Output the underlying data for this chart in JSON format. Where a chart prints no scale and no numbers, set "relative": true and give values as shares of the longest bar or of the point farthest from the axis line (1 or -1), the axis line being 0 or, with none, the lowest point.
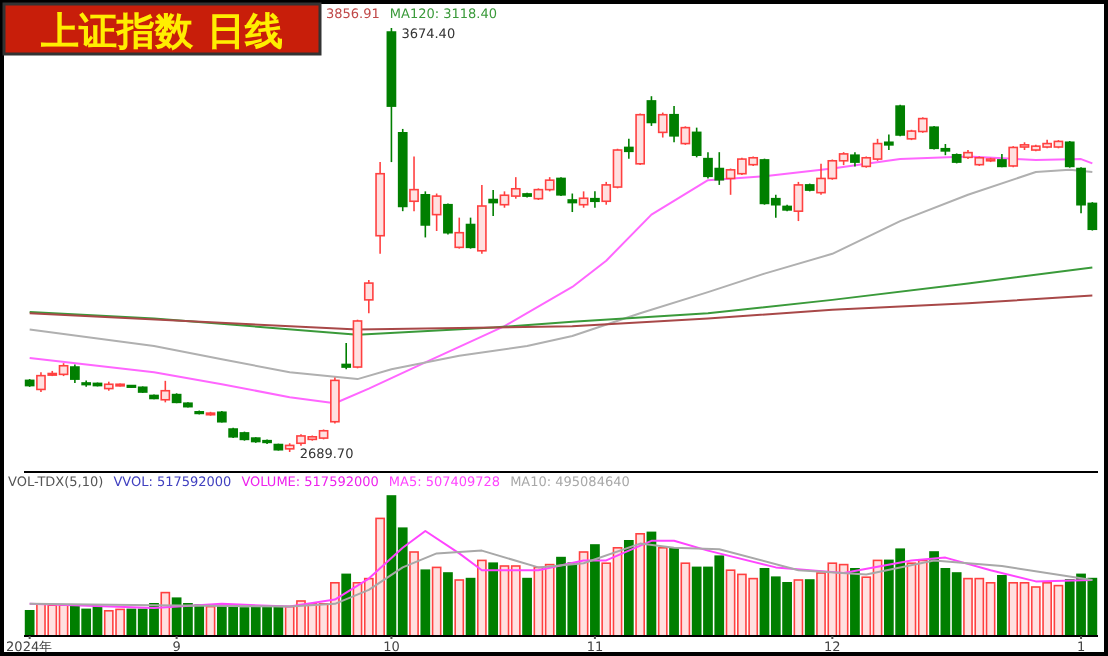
{
  "chart_data": [
    {
      "type": "candlestick",
      "title": "上证指数 日线",
      "tick_labels": false,
      "annotations": [
        "3856.91",
        "3674.40",
        "2689.70"
      ],
      "categories": [
        null,
        null,
        null,
        null,
        null,
        null,
        null,
        null,
        null,
        null,
        null,
        null,
        null,
        null,
        null,
        null,
        null,
        null,
        null,
        null,
        null,
        null,
        null,
        null,
        null,
        null,
        null,
        null,
        null,
        null,
        null,
        null,
        null,
        null,
        null,
        null,
        null,
        null,
        null,
        null,
        null,
        null,
        null,
        null,
        null,
        null,
        null,
        null,
        null,
        null,
        null,
        null,
        null,
        null,
        null,
        null,
        null,
        null,
        null,
        null,
        null,
        null,
        null,
        null,
        null,
        null,
        null,
        null,
        null,
        null,
        null,
        null,
        null,
        null,
        null,
        null,
        null,
        null,
        null,
        null,
        null,
        null,
        null,
        null,
        null,
        null,
        null,
        null,
        null,
        null,
        null,
        null,
        null,
        null,
        null
      ],
      "ohlc": [
        [
          2856,
          2859,
          2841,
          2844
        ],
        [
          2835,
          2875,
          2829,
          2867
        ],
        [
          2869,
          2878,
          2866,
          2872
        ],
        [
          2870,
          2896,
          2866,
          2890
        ],
        [
          2887,
          2893,
          2850,
          2859
        ],
        [
          2850,
          2856,
          2841,
          2847
        ],
        [
          2849,
          2851,
          2842,
          2844
        ],
        [
          2837,
          2853,
          2832,
          2847
        ],
        [
          2844,
          2849,
          2842,
          2847
        ],
        [
          2844,
          2845,
          2839,
          2841
        ],
        [
          2840,
          2842,
          2827,
          2829
        ],
        [
          2821,
          2823,
          2812,
          2814
        ],
        [
          2811,
          2855,
          2805,
          2832
        ],
        [
          2823,
          2826,
          2803,
          2805
        ],
        [
          2803,
          2805,
          2793,
          2795
        ],
        [
          2783,
          2786,
          2777,
          2780
        ],
        [
          2777,
          2783,
          2774,
          2780
        ],
        [
          2782,
          2785,
          2758,
          2760
        ],
        [
          2743,
          2746,
          2722,
          2725
        ],
        [
          2734,
          2737,
          2716,
          2719
        ],
        [
          2722,
          2724,
          2711,
          2714
        ],
        [
          2716,
          2719,
          2708,
          2712
        ],
        [
          2707,
          2709,
          2693,
          2695
        ],
        [
          2697,
          2710,
          2689.7,
          2705
        ],
        [
          2710,
          2731,
          2704,
          2727
        ],
        [
          2719,
          2728,
          2716,
          2725
        ],
        [
          2722,
          2742,
          2719,
          2739
        ],
        [
          2760,
          2863,
          2756,
          2856
        ],
        [
          2893,
          2943,
          2882,
          2887
        ],
        [
          2887,
          2997,
          2884,
          2994
        ],
        [
          3043,
          3089,
          3012,
          3082
        ],
        [
          3192,
          3363,
          3150,
          3336
        ],
        [
          3665,
          3674.4,
          3363,
          3493
        ],
        [
          3431,
          3440,
          3249,
          3260
        ],
        [
          3272,
          3376,
          3249,
          3299
        ],
        [
          3287,
          3295,
          3188,
          3217
        ],
        [
          3241,
          3290,
          3203,
          3284
        ],
        [
          3264,
          3267,
          3195,
          3199
        ],
        [
          3165,
          3234,
          3162,
          3199
        ],
        [
          3218,
          3234,
          3162,
          3165
        ],
        [
          3157,
          3310,
          3150,
          3261
        ],
        [
          3276,
          3298,
          3238,
          3269
        ],
        [
          3264,
          3295,
          3257,
          3286
        ],
        [
          3284,
          3328,
          3278,
          3301
        ],
        [
          3289,
          3292,
          3281,
          3284
        ],
        [
          3278,
          3302,
          3275,
          3299
        ],
        [
          3299,
          3328,
          3295,
          3321
        ],
        [
          3325,
          3328,
          3284,
          3287
        ],
        [
          3275,
          3290,
          3247,
          3269
        ],
        [
          3264,
          3295,
          3257,
          3279
        ],
        [
          3278,
          3295,
          3257,
          3272
        ],
        [
          3272,
          3317,
          3264,
          3310
        ],
        [
          3305,
          3394,
          3302,
          3391
        ],
        [
          3397,
          3417,
          3371,
          3388
        ],
        [
          3359,
          3476,
          3356,
          3473
        ],
        [
          3505,
          3516,
          3447,
          3455
        ],
        [
          3432,
          3478,
          3420,
          3473
        ],
        [
          3473,
          3493,
          3409,
          3424
        ],
        [
          3406,
          3446,
          3403,
          3443
        ],
        [
          3432,
          3443,
          3374,
          3379
        ],
        [
          3371,
          3386,
          3325,
          3330
        ],
        [
          3348,
          3386,
          3310,
          3322
        ],
        [
          3325,
          3348,
          3287,
          3345
        ],
        [
          3336,
          3373,
          3333,
          3370
        ],
        [
          3357,
          3376,
          3354,
          3373
        ],
        [
          3368,
          3371,
          3264,
          3267
        ],
        [
          3278,
          3287,
          3234,
          3264
        ],
        [
          3260,
          3264,
          3249,
          3252
        ],
        [
          3249,
          3317,
          3226,
          3310
        ],
        [
          3310,
          3313,
          3295,
          3298
        ],
        [
          3292,
          3359,
          3287,
          3325
        ],
        [
          3325,
          3369,
          3322,
          3366
        ],
        [
          3366,
          3386,
          3356,
          3382
        ],
        [
          3379,
          3386,
          3353,
          3363
        ],
        [
          3353,
          3376,
          3350,
          3373
        ],
        [
          3370,
          3417,
          3366,
          3406
        ],
        [
          3409,
          3427,
          3391,
          3403
        ],
        [
          3493,
          3496,
          3423,
          3426
        ],
        [
          3417,
          3438,
          3414,
          3435
        ],
        [
          3434,
          3467,
          3431,
          3464
        ],
        [
          3444,
          3447,
          3392,
          3395
        ],
        [
          3394,
          3405,
          3379,
          3389
        ],
        [
          3380,
          3383,
          3360,
          3363
        ],
        [
          3374,
          3391,
          3370,
          3385
        ],
        [
          3357,
          3376,
          3354,
          3373
        ],
        [
          3366,
          3373,
          3363,
          3370
        ],
        [
          3368,
          3382,
          3351,
          3353
        ],
        [
          3354,
          3400,
          3351,
          3397
        ],
        [
          3398,
          3409,
          3391,
          3403
        ],
        [
          3391,
          3403,
          3388,
          3400
        ],
        [
          3398,
          3415,
          3395,
          3406
        ],
        [
          3398,
          3414,
          3395,
          3411
        ],
        [
          3409,
          3412,
          3350,
          3353
        ],
        [
          3348,
          3351,
          3244,
          3264
        ],
        [
          3267,
          3270,
          3204,
          3207
        ]
      ],
      "colors": [
        "#007f00",
        "#ff4040",
        "#ff4040",
        "#ff4040",
        "#007f00",
        "#007f00",
        "#007f00",
        "#ff4040",
        "#ff4040",
        "#007f00",
        "#007f00",
        "#007f00",
        "#ff4040",
        "#007f00",
        "#007f00",
        "#007f00",
        "#ff4040",
        "#007f00",
        "#007f00",
        "#007f00",
        "#007f00",
        "#007f00",
        "#007f00",
        "#ff4040",
        "#ff4040",
        "#ff4040",
        "#ff4040",
        "#ff4040",
        "#007f00",
        "#ff4040",
        "#ff4040",
        "#ff4040",
        "#007f00",
        "#007f00",
        "#ff4040",
        "#007f00",
        "#ff4040",
        "#007f00",
        "#ff4040",
        "#007f00",
        "#ff4040",
        "#007f00",
        "#ff4040",
        "#ff4040",
        "#007f00",
        "#ff4040",
        "#ff4040",
        "#007f00",
        "#007f00",
        "#ff4040",
        "#007f00",
        "#ff4040",
        "#ff4040",
        "#007f00",
        "#ff4040",
        "#007f00",
        "#ff4040",
        "#007f00",
        "#ff4040",
        "#007f00",
        "#007f00",
        "#007f00",
        "#ff4040",
        "#ff4040",
        "#ff4040",
        "#007f00",
        "#007f00",
        "#007f00",
        "#ff4040",
        "#007f00",
        "#ff4040",
        "#ff4040",
        "#ff4040",
        "#007f00",
        "#ff4040",
        "#ff4040",
        "#007f00",
        "#007f00",
        "#ff4040",
        "#ff4040",
        "#007f00",
        "#007f00",
        "#007f00",
        "#ff4040",
        "#ff4040",
        "#ff4040",
        "#007f00",
        "#ff4040",
        "#ff4040",
        "#ff4040",
        "#ff4040",
        "#ff4040",
        "#007f00",
        "#007f00",
        "#007f00"
      ],
      "series": [
        {
          "type": "line",
          "color": "#ff66ff",
          "values": [
            2908,
            null,
            null,
            null,
            null,
            null,
            null,
            null,
            null,
            null,
            null,
            2875,
            null,
            null,
            null,
            null,
            null,
            2847,
            null,
            null,
            null,
            null,
            null,
            2817,
            null,
            null,
            null,
            2803,
            null,
            null,
            2837,
            null,
            null,
            null,
            null,
            2898,
            null,
            null,
            null,
            null,
            null,
            null,
            2982,
            null,
            null,
            null,
            null,
            null,
            3073,
            null,
            null,
            3134,
            null,
            null,
            null,
            3241,
            null,
            null,
            null,
            null,
            3321,
            null,
            null,
            null,
            null,
            3330,
            null,
            null,
            null,
            null,
            null,
            3348,
            null,
            null,
            null,
            null,
            null,
            3370,
            null,
            null,
            null,
            null,
            null,
            3376,
            null,
            null,
            null,
            null,
            null,
            3368,
            null,
            null,
            null,
            3370,
            3360
          ]
        },
        {
          "type": "line",
          "color": "#b0b0b0",
          "values": [
            2974,
            null,
            null,
            null,
            null,
            null,
            null,
            null,
            null,
            null,
            null,
            2936,
            null,
            null,
            null,
            null,
            null,
            2905,
            null,
            null,
            null,
            null,
            null,
            2875,
            null,
            null,
            null,
            null,
            null,
            2859,
            null,
            null,
            2882,
            null,
            null,
            null,
            null,
            null,
            2913,
            null,
            null,
            null,
            null,
            null,
            2936,
            null,
            null,
            null,
            2959,
            null,
            null,
            null,
            null,
            null,
            3012,
            null,
            null,
            null,
            null,
            null,
            3061,
            null,
            null,
            null,
            null,
            3104,
            null,
            null,
            null,
            null,
            null,
            3150,
            null,
            null,
            null,
            null,
            null,
            3226,
            null,
            null,
            null,
            null,
            null,
            3287,
            null,
            null,
            null,
            null,
            null,
            3340,
            null,
            null,
            3345,
            null,
            3340
          ]
        },
        {
          "type": "line",
          "name": "MA120: 3118.40",
          "color": "#3a9a3a",
          "values": [
            3015,
            null,
            null,
            null,
            null,
            null,
            null,
            null,
            null,
            null,
            null,
            3000,
            null,
            null,
            null,
            null,
            null,
            null,
            null,
            null,
            null,
            null,
            null,
            null,
            null,
            null,
            null,
            null,
            null,
            2962,
            null,
            null,
            null,
            null,
            null,
            null,
            null,
            null,
            null,
            null,
            null,
            2979,
            null,
            null,
            null,
            null,
            null,
            null,
            2992,
            null,
            null,
            null,
            null,
            null,
            null,
            null,
            null,
            null,
            null,
            null,
            3012,
            null,
            null,
            null,
            null,
            null,
            null,
            null,
            null,
            null,
            null,
            3043,
            null,
            null,
            null,
            null,
            null,
            null,
            null,
            null,
            null,
            null,
            null,
            3081,
            null,
            null,
            null,
            null,
            null,
            null,
            null,
            null,
            null,
            null,
            3118.4
          ]
        },
        {
          "type": "line",
          "color": "#a84848",
          "values": [
            3012,
            null,
            null,
            null,
            null,
            null,
            null,
            null,
            null,
            null,
            null,
            null,
            null,
            null,
            null,
            null,
            null,
            null,
            null,
            null,
            null,
            null,
            null,
            null,
            null,
            null,
            null,
            null,
            null,
            2974,
            null,
            null,
            null,
            null,
            null,
            null,
            null,
            null,
            null,
            null,
            null,
            null,
            null,
            null,
            null,
            null,
            null,
            null,
            2982,
            null,
            null,
            null,
            null,
            null,
            null,
            null,
            null,
            null,
            null,
            null,
            3000,
            null,
            null,
            null,
            null,
            null,
            null,
            null,
            null,
            null,
            null,
            3020,
            null,
            null,
            null,
            null,
            null,
            null,
            null,
            null,
            null,
            null,
            null,
            3035,
            null,
            null,
            null,
            null,
            null,
            null,
            null,
            null,
            null,
            null,
            3053
          ]
        }
      ]
    },
    {
      "type": "bar",
      "title": "VOL-TDX(5,10)",
      "relative": true,
      "tick_labels": "x",
      "annotations": [
        "VVOL: 517592000",
        "VOLUME: 517592000"
      ],
      "categories": [
        "2024年",
        null,
        null,
        null,
        null,
        null,
        null,
        null,
        null,
        null,
        null,
        null,
        null,
        "9",
        null,
        null,
        null,
        null,
        null,
        null,
        null,
        null,
        null,
        null,
        null,
        null,
        null,
        null,
        null,
        null,
        null,
        null,
        "10",
        null,
        null,
        null,
        null,
        null,
        null,
        null,
        null,
        null,
        null,
        null,
        null,
        null,
        null,
        null,
        null,
        null,
        "11",
        null,
        null,
        null,
        null,
        null,
        null,
        null,
        null,
        null,
        null,
        null,
        null,
        null,
        null,
        null,
        null,
        null,
        null,
        null,
        null,
        "12",
        null,
        null,
        null,
        null,
        null,
        null,
        null,
        null,
        null,
        null,
        null,
        null,
        null,
        null,
        null,
        null,
        null,
        null,
        null,
        null,
        null,
        "1",
        null
      ],
      "series": [
        {
          "type": "bar",
          "colors": [
            "#007f00",
            "#ff4040",
            "#ff4040",
            "#ff4040",
            "#007f00",
            "#007f00",
            "#007f00",
            "#ff4040",
            "#ff4040",
            "#007f00",
            "#007f00",
            "#007f00",
            "#ff4040",
            "#007f00",
            "#007f00",
            "#007f00",
            "#ff4040",
            "#007f00",
            "#007f00",
            "#007f00",
            "#007f00",
            "#007f00",
            "#007f00",
            "#ff4040",
            "#ff4040",
            "#ff4040",
            "#ff4040",
            "#ff4040",
            "#007f00",
            "#ff4040",
            "#ff4040",
            "#ff4040",
            "#007f00",
            "#007f00",
            "#ff4040",
            "#007f00",
            "#ff4040",
            "#007f00",
            "#ff4040",
            "#007f00",
            "#ff4040",
            "#007f00",
            "#ff4040",
            "#ff4040",
            "#007f00",
            "#ff4040",
            "#ff4040",
            "#007f00",
            "#007f00",
            "#ff4040",
            "#007f00",
            "#ff4040",
            "#ff4040",
            "#007f00",
            "#ff4040",
            "#007f00",
            "#ff4040",
            "#007f00",
            "#ff4040",
            "#007f00",
            "#007f00",
            "#007f00",
            "#ff4040",
            "#ff4040",
            "#ff4040",
            "#007f00",
            "#007f00",
            "#007f00",
            "#ff4040",
            "#007f00",
            "#ff4040",
            "#ff4040",
            "#ff4040",
            "#007f00",
            "#ff4040",
            "#ff4040",
            "#007f00",
            "#007f00",
            "#ff4040",
            "#ff4040",
            "#007f00",
            "#007f00",
            "#007f00",
            "#ff4040",
            "#ff4040",
            "#ff4040",
            "#007f00",
            "#ff4040",
            "#ff4040",
            "#ff4040",
            "#ff4040",
            "#ff4040",
            "#007f00",
            "#007f00",
            "#007f00"
          ],
          "values": [
            0.18,
            0.23,
            0.22,
            0.22,
            0.22,
            0.19,
            0.21,
            0.18,
            0.19,
            0.19,
            0.19,
            0.23,
            0.31,
            0.27,
            0.23,
            0.22,
            0.21,
            0.22,
            0.22,
            0.2,
            0.21,
            0.21,
            0.21,
            0.21,
            0.25,
            0.23,
            0.23,
            0.38,
            0.44,
            0.38,
            0.41,
            0.84,
            1,
            0.77,
            0.6,
            0.47,
            0.49,
            0.45,
            0.4,
            0.41,
            0.54,
            0.52,
            0.5,
            0.5,
            0.41,
            0.49,
            0.51,
            0.56,
            0.52,
            0.6,
            0.65,
            0.52,
            0.63,
            0.68,
            0.73,
            0.74,
            0.63,
            0.63,
            0.52,
            0.49,
            0.49,
            0.57,
            0.47,
            0.44,
            0.41,
            0.48,
            0.42,
            0.38,
            0.4,
            0.4,
            0.45,
            0.52,
            0.51,
            0.48,
            0.42,
            0.54,
            0.54,
            0.62,
            0.52,
            0.54,
            0.6,
            0.48,
            0.45,
            0.41,
            0.41,
            0.38,
            0.43,
            0.38,
            0.38,
            0.35,
            0.38,
            0.36,
            0.4,
            0.44,
            0.41
          ]
        },
        {
          "type": "line",
          "name": "MA5: 507409728",
          "color": "#ff44ff",
          "values": [
            0.23,
            null,
            null,
            null,
            null,
            null,
            null,
            null,
            null,
            null,
            null,
            0.2,
            null,
            null,
            null,
            null,
            null,
            0.23,
            null,
            null,
            null,
            null,
            null,
            0.21,
            null,
            null,
            null,
            0.26,
            null,
            null,
            0.41,
            null,
            null,
            0.63,
            null,
            0.75,
            null,
            null,
            0.59,
            null,
            0.47,
            null,
            null,
            null,
            null,
            0.47,
            null,
            null,
            null,
            0.54,
            null,
            0.54,
            null,
            null,
            null,
            0.68,
            null,
            0.68,
            null,
            null,
            0.61,
            null,
            null,
            null,
            null,
            null,
            0.49,
            null,
            null,
            null,
            null,
            null,
            0.45,
            null,
            null,
            null,
            null,
            null,
            0.54,
            null,
            null,
            0.56,
            null,
            null,
            null,
            0.47,
            null,
            null,
            null,
            0.39,
            null,
            null,
            null,
            null,
            0.4
          ]
        },
        {
          "type": "line",
          "name": "MA10: 495084640",
          "color": "#a8a8a8",
          "values": [
            0.23,
            null,
            null,
            null,
            null,
            null,
            null,
            null,
            null,
            null,
            null,
            0.22,
            null,
            null,
            null,
            null,
            null,
            null,
            null,
            null,
            null,
            null,
            null,
            0.21,
            null,
            null,
            null,
            0.23,
            null,
            null,
            0.33,
            null,
            null,
            0.49,
            null,
            null,
            0.59,
            null,
            null,
            null,
            0.61,
            null,
            null,
            null,
            null,
            0.49,
            null,
            null,
            null,
            0.52,
            null,
            null,
            null,
            null,
            0.66,
            null,
            null,
            0.63,
            null,
            null,
            null,
            0.62,
            null,
            null,
            null,
            null,
            null,
            null,
            0.47,
            null,
            null,
            null,
            null,
            null,
            0.44,
            null,
            null,
            null,
            null,
            null,
            0.54,
            null,
            null,
            null,
            null,
            null,
            0.5,
            null,
            null,
            null,
            null,
            null,
            null,
            null,
            0.4
          ]
        }
      ]
    }
  ]
}
